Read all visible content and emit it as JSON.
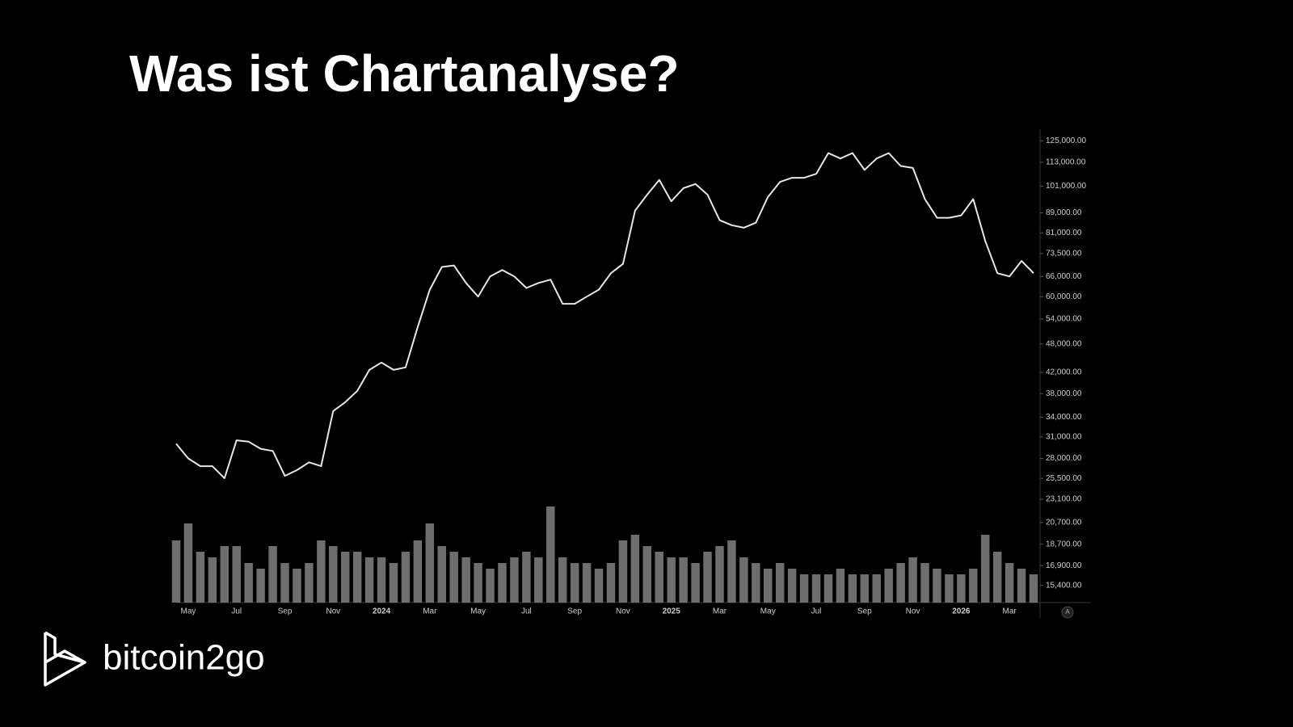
{
  "chart_data": {
    "type": "line",
    "title": "Was ist Chartanalyse?",
    "brand": "bitcoin2go",
    "auto_scale_label": "A",
    "log_scale": true,
    "color": "#e6e6e6",
    "volume_color": "#8a8a8a",
    "categories": [
      null,
      "May",
      null,
      null,
      null,
      "Jul",
      null,
      null,
      null,
      "Sep",
      null,
      null,
      null,
      "Nov",
      null,
      null,
      null,
      "2024",
      null,
      null,
      null,
      "Mar",
      null,
      null,
      null,
      "May",
      null,
      null,
      null,
      "Jul",
      null,
      null,
      null,
      "Sep",
      null,
      null,
      null,
      "Nov",
      null,
      null,
      null,
      "2025",
      null,
      null,
      null,
      "Mar",
      null,
      null,
      null,
      "May",
      null,
      null,
      null,
      "Jul",
      null,
      null,
      null,
      "Sep",
      null,
      null,
      null,
      "Nov",
      null,
      null,
      null,
      "2026",
      null,
      null,
      null,
      "Mar",
      null,
      null
    ],
    "values": [
      30000,
      28000,
      27000,
      27000,
      25500,
      30500,
      30300,
      29300,
      29000,
      25800,
      26500,
      27500,
      27000,
      35000,
      36500,
      38500,
      42500,
      44000,
      42500,
      43000,
      52000,
      62000,
      69000,
      69500,
      64000,
      60000,
      66000,
      68000,
      66000,
      62500,
      64000,
      65000,
      58000,
      58000,
      60000,
      62000,
      67000,
      70000,
      90000,
      97000,
      104000,
      94000,
      100000,
      102000,
      97000,
      86000,
      84000,
      83000,
      85000,
      96000,
      103000,
      105000,
      105000,
      107000,
      118000,
      115000,
      118000,
      109000,
      115000,
      118000,
      111000,
      110000,
      95000,
      87000,
      87000,
      88000,
      95000,
      78000,
      67000,
      66000,
      71000,
      67000
    ],
    "volume": [
      55,
      70,
      45,
      40,
      50,
      50,
      35,
      30,
      50,
      35,
      30,
      35,
      55,
      50,
      45,
      45,
      40,
      40,
      35,
      45,
      55,
      70,
      50,
      45,
      40,
      35,
      30,
      35,
      40,
      45,
      40,
      85,
      40,
      35,
      35,
      30,
      35,
      55,
      60,
      50,
      45,
      40,
      40,
      35,
      45,
      50,
      55,
      40,
      35,
      30,
      35,
      30,
      25,
      25,
      25,
      30,
      25,
      25,
      25,
      30,
      35,
      40,
      35,
      30,
      25,
      25,
      30,
      60,
      45,
      35,
      30,
      25
    ],
    "volume_ylim": [
      0,
      100
    ],
    "ylim": [
      14200,
      132000
    ],
    "yticks": [
      {
        "value": 125000,
        "label": "125,000.00"
      },
      {
        "value": 113000,
        "label": "113,000.00"
      },
      {
        "value": 101000,
        "label": "101,000.00"
      },
      {
        "value": 89000,
        "label": "89,000.00"
      },
      {
        "value": 81000,
        "label": "81,000.00"
      },
      {
        "value": 73500,
        "label": "73,500.00"
      },
      {
        "value": 66000,
        "label": "66,000.00"
      },
      {
        "value": 60000,
        "label": "60,000.00"
      },
      {
        "value": 54000,
        "label": "54,000.00"
      },
      {
        "value": 48000,
        "label": "48,000.00"
      },
      {
        "value": 42000,
        "label": "42,000.00"
      },
      {
        "value": 38000,
        "label": "38,000.00"
      },
      {
        "value": 34000,
        "label": "34,000.00"
      },
      {
        "value": 31000,
        "label": "31,000.00"
      },
      {
        "value": 28000,
        "label": "28,000.00"
      },
      {
        "value": 25500,
        "label": "25,500.00"
      },
      {
        "value": 23100,
        "label": "23,100.00"
      },
      {
        "value": 20700,
        "label": "20,700.00"
      },
      {
        "value": 18700,
        "label": "18,700.00"
      },
      {
        "value": 16900,
        "label": "16,900.00"
      },
      {
        "value": 15400,
        "label": "15,400.00"
      }
    ]
  }
}
